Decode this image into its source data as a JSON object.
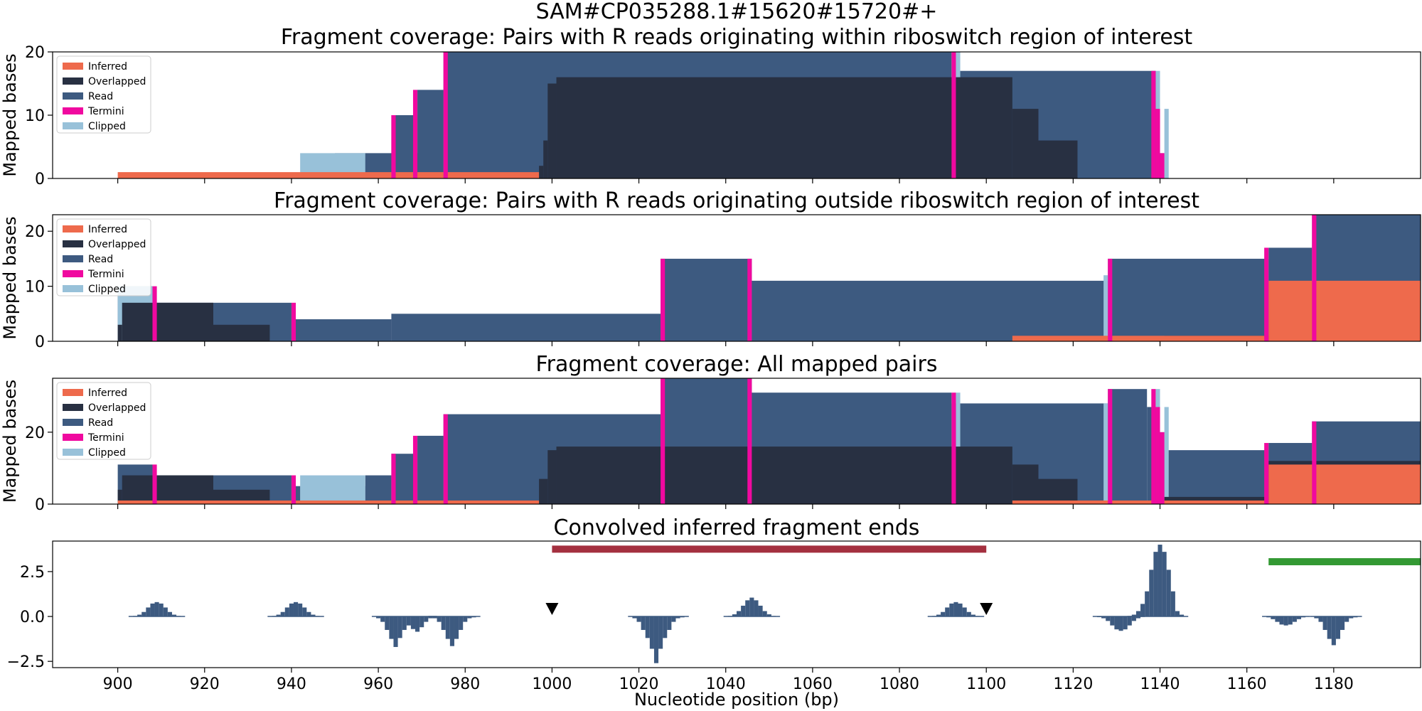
{
  "figure_title": "SAM#CP035288.1#15620#15720#+",
  "xlabel": "Nucleotide position (bp)",
  "colors": {
    "inferred": "#ee6a4c",
    "overlapped": "#283042",
    "read": "#3d5a80",
    "termini": "#f0099f",
    "clipped": "#98c1d9",
    "red_bar": "#a4303f",
    "green_bar": "#339933"
  },
  "chart_data": [
    {
      "type": "area",
      "title": "Fragment coverage: Pairs with R reads originating within riboswitch region of interest",
      "ylabel": "Mapped bases",
      "xlim": [
        885,
        1200
      ],
      "ylim": [
        0,
        20
      ],
      "yticks": [
        0,
        10,
        20
      ],
      "legend": {
        "position": "top-left",
        "entries": [
          "Inferred",
          "Overlapped",
          "Read",
          "Termini",
          "Clipped"
        ]
      },
      "inferred": [
        [
          900,
          997,
          1
        ]
      ],
      "overlapped": [
        [
          997,
          998,
          2
        ],
        [
          998,
          999,
          6
        ],
        [
          999,
          1001,
          15
        ],
        [
          1001,
          1106,
          16
        ],
        [
          1106,
          1112,
          11
        ],
        [
          1112,
          1121,
          6
        ]
      ],
      "read": [
        [
          950,
          956,
          4
        ],
        [
          956,
          970,
          4
        ],
        [
          963,
          969,
          10
        ],
        [
          969,
          975,
          14
        ],
        [
          975,
          1092,
          20
        ],
        [
          1093,
          1139,
          17
        ],
        [
          1139,
          1140,
          11
        ],
        [
          1140,
          1141,
          4
        ]
      ],
      "clipped": [
        [
          942,
          957,
          4
        ],
        [
          1093,
          1094,
          20
        ],
        [
          1139,
          1140,
          17
        ],
        [
          1141,
          1142,
          11
        ]
      ],
      "termini": [
        [
          963,
          964,
          10
        ],
        [
          968,
          969,
          14
        ],
        [
          975,
          976,
          20
        ],
        [
          1092,
          1093,
          20
        ],
        [
          1138,
          1139,
          17
        ],
        [
          1139,
          1140,
          11
        ],
        [
          1140,
          1141,
          4
        ]
      ]
    },
    {
      "type": "area",
      "title": "Fragment coverage: Pairs with R reads originating outside riboswitch region of interest",
      "ylabel": "Mapped bases",
      "xlim": [
        885,
        1200
      ],
      "ylim": [
        0,
        23
      ],
      "yticks": [
        0,
        10,
        20
      ],
      "legend": {
        "position": "top-left",
        "entries": [
          "Inferred",
          "Overlapped",
          "Read",
          "Termini",
          "Clipped"
        ]
      },
      "inferred": [
        [
          1106,
          1165,
          1
        ],
        [
          1165,
          1200,
          11
        ]
      ],
      "overlapped": [
        [
          900,
          901,
          3
        ],
        [
          901,
          922,
          7
        ],
        [
          922,
          935,
          3
        ],
        [
          1141,
          1165,
          1
        ],
        [
          1165,
          1200,
          1
        ]
      ],
      "read": [
        [
          900,
          908,
          10
        ],
        [
          908,
          940,
          7
        ],
        [
          940,
          963,
          4
        ],
        [
          963,
          1025,
          5
        ],
        [
          1025,
          1046,
          15
        ],
        [
          1046,
          1128,
          11
        ],
        [
          1128,
          1165,
          15
        ],
        [
          1165,
          1175,
          17
        ],
        [
          1175,
          1200,
          23
        ]
      ],
      "clipped": [
        [
          900,
          908,
          10
        ],
        [
          1127,
          1128,
          12
        ]
      ],
      "termini": [
        [
          908,
          909,
          10
        ],
        [
          940,
          941,
          7
        ],
        [
          1025,
          1026,
          15
        ],
        [
          1045,
          1046,
          15
        ],
        [
          1128,
          1129,
          15
        ],
        [
          1164,
          1165,
          17
        ],
        [
          1175,
          1176,
          23
        ]
      ]
    },
    {
      "type": "area",
      "title": "Fragment coverage: All mapped pairs",
      "ylabel": "Mapped bases",
      "xlim": [
        885,
        1200
      ],
      "ylim": [
        0,
        35
      ],
      "yticks": [
        0,
        20
      ],
      "legend": {
        "position": "top-left",
        "entries": [
          "Inferred",
          "Overlapped",
          "Read",
          "Termini",
          "Clipped"
        ]
      },
      "inferred": [
        [
          900,
          997,
          1
        ],
        [
          1106,
          1165,
          1
        ],
        [
          1165,
          1200,
          11
        ]
      ],
      "overlapped": [
        [
          900,
          901,
          4
        ],
        [
          901,
          922,
          8
        ],
        [
          922,
          935,
          4
        ],
        [
          997,
          999,
          7
        ],
        [
          999,
          1001,
          15
        ],
        [
          1001,
          1106,
          16
        ],
        [
          1106,
          1112,
          11
        ],
        [
          1112,
          1121,
          7
        ],
        [
          1141,
          1165,
          2
        ],
        [
          1165,
          1200,
          12
        ]
      ],
      "read": [
        [
          900,
          908,
          11
        ],
        [
          908,
          940,
          8
        ],
        [
          940,
          942,
          5
        ],
        [
          942,
          957,
          5
        ],
        [
          957,
          963,
          8
        ],
        [
          963,
          969,
          14
        ],
        [
          969,
          975,
          19
        ],
        [
          975,
          1025,
          25
        ],
        [
          1025,
          1046,
          35
        ],
        [
          1046,
          1092,
          31
        ],
        [
          1092,
          1128,
          28
        ],
        [
          1128,
          1137,
          32
        ],
        [
          1137,
          1139,
          27
        ],
        [
          1139,
          1141,
          20
        ],
        [
          1141,
          1165,
          15
        ],
        [
          1165,
          1175,
          17
        ],
        [
          1175,
          1200,
          23
        ]
      ],
      "clipped": [
        [
          942,
          957,
          8
        ],
        [
          1093,
          1094,
          31
        ],
        [
          1127,
          1128,
          28
        ],
        [
          1139,
          1140,
          32
        ],
        [
          1141,
          1142,
          27
        ]
      ],
      "termini": [
        [
          908,
          909,
          11
        ],
        [
          940,
          941,
          8
        ],
        [
          963,
          964,
          14
        ],
        [
          968,
          969,
          19
        ],
        [
          975,
          976,
          25
        ],
        [
          1025,
          1026,
          35
        ],
        [
          1045,
          1046,
          35
        ],
        [
          1092,
          1093,
          31
        ],
        [
          1128,
          1129,
          32
        ],
        [
          1138,
          1139,
          32
        ],
        [
          1139,
          1140,
          27
        ],
        [
          1140,
          1141,
          20
        ],
        [
          1164,
          1165,
          17
        ],
        [
          1175,
          1176,
          23
        ]
      ]
    },
    {
      "type": "bar",
      "title": "Convolved inferred fragment ends",
      "ylabel": "",
      "xlim": [
        885,
        1200
      ],
      "ylim": [
        -2.85,
        4.2
      ],
      "yticks": [
        -2.5,
        0.0,
        2.5
      ],
      "ytick_labels": [
        "−2.5",
        "0.0",
        "2.5"
      ],
      "xticks": [
        900,
        920,
        940,
        960,
        980,
        1000,
        1020,
        1040,
        1060,
        1080,
        1100,
        1120,
        1140,
        1160,
        1180
      ],
      "peaks": [
        {
          "x": [
            904,
            905,
            906,
            907,
            908,
            909,
            910,
            911,
            912,
            913,
            914
          ],
          "y": [
            0.03,
            0.1,
            0.25,
            0.5,
            0.72,
            0.8,
            0.72,
            0.5,
            0.25,
            0.1,
            0.03
          ]
        },
        {
          "x": [
            936,
            937,
            938,
            939,
            940,
            941,
            942,
            943,
            944,
            945,
            946
          ],
          "y": [
            0.03,
            0.1,
            0.25,
            0.5,
            0.72,
            0.8,
            0.72,
            0.5,
            0.25,
            0.1,
            0.03
          ]
        },
        {
          "x": [
            960,
            961,
            962,
            963,
            964,
            965,
            966,
            967,
            968,
            969,
            970,
            971,
            972
          ],
          "y": [
            -0.1,
            -0.3,
            -0.75,
            -1.25,
            -1.7,
            -1.2,
            -0.75,
            -0.5,
            -0.7,
            -0.85,
            -0.6,
            -0.3,
            -0.1
          ]
        },
        {
          "x": [
            973,
            974,
            975,
            976,
            977,
            978,
            979,
            980,
            981,
            982
          ],
          "y": [
            -0.1,
            -0.3,
            -0.75,
            -1.25,
            -1.65,
            -1.25,
            -0.75,
            -0.3,
            -0.1,
            -0.05
          ]
        },
        {
          "x": [
            1019,
            1020,
            1021,
            1022,
            1023,
            1024,
            1025,
            1026,
            1027,
            1028,
            1029,
            1030
          ],
          "y": [
            -0.1,
            -0.3,
            -0.75,
            -1.2,
            -1.8,
            -2.6,
            -1.8,
            -1.2,
            -0.75,
            -0.3,
            -0.1,
            -0.05
          ]
        },
        {
          "x": [
            1041,
            1042,
            1043,
            1044,
            1045,
            1046,
            1047,
            1048,
            1049,
            1050,
            1051
          ],
          "y": [
            0.03,
            0.12,
            0.3,
            0.6,
            0.9,
            1.05,
            0.9,
            0.6,
            0.3,
            0.12,
            0.03
          ]
        },
        {
          "x": [
            1088,
            1089,
            1090,
            1091,
            1092,
            1093,
            1094,
            1095,
            1096,
            1097,
            1098
          ],
          "y": [
            0.03,
            0.1,
            0.25,
            0.5,
            0.72,
            0.8,
            0.72,
            0.5,
            0.25,
            0.1,
            0.03
          ]
        },
        {
          "x": [
            1126,
            1127,
            1128,
            1129,
            1130,
            1131,
            1132,
            1133,
            1134,
            1135
          ],
          "y": [
            -0.03,
            -0.1,
            -0.25,
            -0.5,
            -0.72,
            -0.8,
            -0.72,
            -0.5,
            -0.25,
            -0.1
          ]
        },
        {
          "x": [
            1134,
            1135,
            1136,
            1137,
            1138,
            1139,
            1140,
            1141,
            1142,
            1143,
            1144,
            1145
          ],
          "y": [
            0.1,
            0.3,
            0.7,
            1.4,
            2.6,
            3.6,
            4.0,
            3.6,
            2.6,
            1.4,
            0.3,
            0.1
          ]
        },
        {
          "x": [
            1165,
            1166,
            1167,
            1168,
            1169,
            1170,
            1171,
            1172,
            1173
          ],
          "y": [
            -0.05,
            -0.15,
            -0.3,
            -0.45,
            -0.5,
            -0.45,
            -0.3,
            -0.15,
            -0.05
          ]
        },
        {
          "x": [
            1176,
            1177,
            1178,
            1179,
            1180,
            1181,
            1182,
            1183,
            1184,
            1185
          ],
          "y": [
            -0.1,
            -0.3,
            -0.75,
            -1.25,
            -1.6,
            -1.25,
            -0.75,
            -0.3,
            -0.1,
            -0.05
          ]
        }
      ],
      "red_bar": {
        "x": [
          1000,
          1100
        ],
        "y": 3.75
      },
      "green_bar": {
        "x": [
          1165,
          1200
        ],
        "y": 3.05
      },
      "markers": [
        {
          "x": 1000,
          "y": 0.4
        },
        {
          "x": 1100,
          "y": 0.4
        }
      ]
    }
  ]
}
